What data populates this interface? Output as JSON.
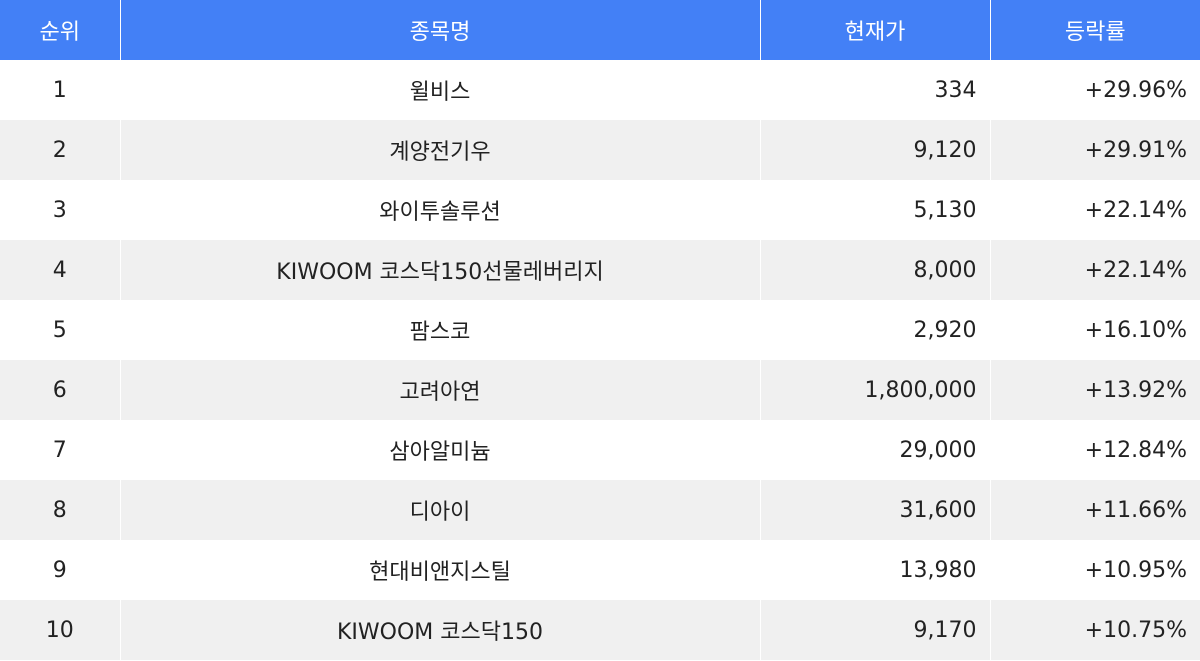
{
  "colors": {
    "header_bg": "#4380f6",
    "header_text": "#ffffff",
    "row_alt_bg": "#f0f0f0"
  },
  "table": {
    "headers": {
      "rank": "순위",
      "name": "종목명",
      "price": "현재가",
      "change": "등락률"
    },
    "rows": [
      {
        "rank": "1",
        "name": "윌비스",
        "price": "334",
        "change": "+29.96%"
      },
      {
        "rank": "2",
        "name": "계양전기우",
        "price": "9,120",
        "change": "+29.91%"
      },
      {
        "rank": "3",
        "name": "와이투솔루션",
        "price": "5,130",
        "change": "+22.14%"
      },
      {
        "rank": "4",
        "name": "KIWOOM 코스닥150선물레버리지",
        "price": "8,000",
        "change": "+22.14%"
      },
      {
        "rank": "5",
        "name": "팜스코",
        "price": "2,920",
        "change": "+16.10%"
      },
      {
        "rank": "6",
        "name": "고려아연",
        "price": "1,800,000",
        "change": "+13.92%"
      },
      {
        "rank": "7",
        "name": "삼아알미늄",
        "price": "29,000",
        "change": "+12.84%"
      },
      {
        "rank": "8",
        "name": "디아이",
        "price": "31,600",
        "change": "+11.66%"
      },
      {
        "rank": "9",
        "name": "현대비앤지스틸",
        "price": "13,980",
        "change": "+10.95%"
      },
      {
        "rank": "10",
        "name": "KIWOOM 코스닥150",
        "price": "9,170",
        "change": "+10.75%"
      }
    ]
  }
}
